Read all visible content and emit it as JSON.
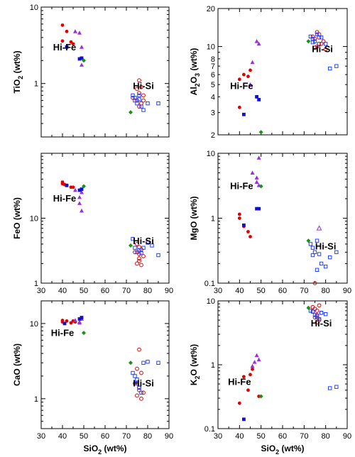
{
  "page": {
    "background": "#ffffff"
  },
  "legend_markers": {
    "red_filled_circle": "#e00000",
    "red_open_circle": "#e00000",
    "purple_triangle": "#9b30d9",
    "blue_filled_square": "#1010cc",
    "blue_open_square": "#2040ff",
    "green_diamond": "#1a8f1a"
  },
  "chart_data": [
    {
      "id": "tio2",
      "type": "scatter",
      "ylog": true,
      "xlim": [
        30,
        90
      ],
      "ylim": [
        0.2,
        10
      ],
      "xticks": [
        30,
        40,
        50,
        60,
        70,
        80,
        90
      ],
      "xlabels_shown": false,
      "yticks": [
        1,
        10
      ],
      "ylabels": [
        "1",
        "10"
      ],
      "ylabel": "TiO2 (wt%)",
      "ylabel_main": "TiO",
      "ylabel_sub": "2",
      "ylabel_rest": " (wt%)",
      "annotations": [
        {
          "text": "Hi-Fe",
          "x": 41,
          "y": 2.7
        },
        {
          "text": "Hi-Si",
          "x": 78,
          "y": 0.85
        }
      ],
      "series": [
        {
          "marker": "red_filled_circle",
          "x": [
            40,
            42,
            40,
            44,
            45
          ],
          "y": [
            5.8,
            4.8,
            3.6,
            3.5,
            3.3
          ]
        },
        {
          "marker": "purple_triangle",
          "x": [
            46,
            48,
            49,
            49
          ],
          "y": [
            4.8,
            4.6,
            3.0,
            1.75
          ]
        },
        {
          "marker": "blue_filled_square",
          "x": [
            42,
            48,
            49
          ],
          "y": [
            3.0,
            2.1,
            2.15
          ]
        },
        {
          "marker": "green_diamond",
          "x": [
            50,
            72
          ],
          "y": [
            2.0,
            0.42
          ]
        },
        {
          "marker": "red_open_circle",
          "x": [
            76,
            77,
            75,
            76,
            78,
            73,
            75,
            77,
            76,
            78
          ],
          "y": [
            1.1,
            0.9,
            0.85,
            0.75,
            0.7,
            0.65,
            0.6,
            0.55,
            0.5,
            0.6
          ]
        },
        {
          "marker": "blue_open_square",
          "x": [
            73,
            74,
            75,
            76,
            77,
            78,
            80,
            85,
            74,
            76
          ],
          "y": [
            0.7,
            0.6,
            0.55,
            0.7,
            0.5,
            0.45,
            0.55,
            0.55,
            0.65,
            0.62
          ]
        }
      ]
    },
    {
      "id": "al2o3",
      "type": "scatter",
      "ylog": true,
      "xlim": [
        30,
        90
      ],
      "ylim": [
        2,
        20
      ],
      "xticks": [
        30,
        40,
        50,
        60,
        70,
        80,
        90
      ],
      "xlabels_shown": false,
      "yticks": [
        2,
        3,
        4,
        5,
        6,
        7,
        8,
        10,
        20
      ],
      "ylabels": [
        "2",
        "3",
        "4",
        "5",
        "6",
        "7",
        "8",
        "10",
        "20"
      ],
      "ylabel": "Al2O3 (wt%)",
      "ylabel_main": "Al",
      "ylabel_sub": "2",
      "ylabel_mid": "O",
      "ylabel_sub2": "3",
      "ylabel_rest": " (wt%)",
      "annotations": [
        {
          "text": "Hi-Fe",
          "x": 41,
          "y": 4.6
        },
        {
          "text": "Hi-Si",
          "x": 78.5,
          "y": 9.0
        }
      ],
      "series": [
        {
          "marker": "red_filled_circle",
          "x": [
            40,
            42,
            44,
            45,
            40
          ],
          "y": [
            5.5,
            6.0,
            5.8,
            6.5,
            3.3
          ]
        },
        {
          "marker": "purple_triangle",
          "x": [
            46,
            48,
            49,
            45
          ],
          "y": [
            7.5,
            11.0,
            10.5,
            5.0
          ]
        },
        {
          "marker": "blue_filled_square",
          "x": [
            42,
            48,
            49
          ],
          "y": [
            2.9,
            4.0,
            3.8
          ]
        },
        {
          "marker": "green_diamond",
          "x": [
            50,
            72
          ],
          "y": [
            2.1,
            11.0
          ]
        },
        {
          "marker": "red_open_circle",
          "x": [
            74,
            75,
            76,
            77,
            78,
            76,
            75,
            79,
            77,
            80
          ],
          "y": [
            12.0,
            11.5,
            13.0,
            12.5,
            10.5,
            10.0,
            9.8,
            11.0,
            11.8,
            9.5
          ]
        },
        {
          "marker": "blue_open_square",
          "x": [
            73,
            74,
            75,
            76,
            77,
            78,
            80,
            82,
            85,
            74
          ],
          "y": [
            12.0,
            11.5,
            11.0,
            12.5,
            10.5,
            11.8,
            10.5,
            6.7,
            7.0,
            10.8
          ]
        }
      ]
    },
    {
      "id": "feo",
      "type": "scatter",
      "ylog": true,
      "xlim": [
        30,
        90
      ],
      "ylim": [
        1,
        100
      ],
      "xticks": [
        30,
        40,
        50,
        60,
        70,
        80,
        90
      ],
      "xlabels": [
        "30",
        "40",
        "50",
        "60",
        "70",
        "80",
        "90"
      ],
      "xlabels_shown": true,
      "yticks": [
        1,
        10
      ],
      "ylabels": [
        "1",
        "10"
      ],
      "ylabel": "FeO (wt%)",
      "annotations": [
        {
          "text": "Hi-Fe",
          "x": 41,
          "y": 18
        },
        {
          "text": "Hi-Si",
          "x": 78,
          "y": 4.0
        }
      ],
      "series": [
        {
          "marker": "red_filled_circle",
          "x": [
            40,
            40,
            42,
            44,
            45,
            41
          ],
          "y": [
            36,
            34,
            32,
            30,
            30,
            33
          ]
        },
        {
          "marker": "purple_triangle",
          "x": [
            46,
            48,
            48,
            49,
            49
          ],
          "y": [
            27,
            21,
            17,
            13,
            25
          ]
        },
        {
          "marker": "blue_filled_square",
          "x": [
            42,
            48,
            49
          ],
          "y": [
            32,
            27,
            28
          ]
        },
        {
          "marker": "green_diamond",
          "x": [
            50,
            72
          ],
          "y": [
            31,
            3.8
          ]
        },
        {
          "marker": "red_open_circle",
          "x": [
            75,
            76,
            77,
            74,
            76,
            78,
            76,
            75,
            77,
            76
          ],
          "y": [
            4.0,
            3.6,
            3.3,
            3.0,
            2.8,
            2.6,
            2.2,
            2.0,
            1.9,
            2.4
          ]
        },
        {
          "marker": "blue_open_square",
          "x": [
            73,
            74,
            76,
            78,
            80,
            82,
            85,
            75,
            77
          ],
          "y": [
            4.8,
            3.5,
            3.2,
            3.5,
            4.2,
            3.8,
            2.7,
            3.0,
            2.9
          ]
        }
      ]
    },
    {
      "id": "mgo",
      "type": "scatter",
      "ylog": true,
      "xlim": [
        30,
        90
      ],
      "ylim": [
        0.1,
        10
      ],
      "xticks": [
        30,
        40,
        50,
        60,
        70,
        80,
        90
      ],
      "xlabels": [
        "30",
        "40",
        "50",
        "60",
        "70",
        "80",
        "90"
      ],
      "xlabels_shown": true,
      "yticks": [
        0.1,
        1,
        10
      ],
      "ylabels": [
        "0.1",
        "1",
        "10"
      ],
      "ylabel": "MgO (wt%)",
      "annotations": [
        {
          "text": "Hi-Fe",
          "x": 41,
          "y": 2.8
        },
        {
          "text": "Hi-Si",
          "x": 80,
          "y": 0.33
        }
      ],
      "series": [
        {
          "marker": "red_filled_circle",
          "x": [
            40,
            40,
            42,
            44,
            45
          ],
          "y": [
            1.15,
            1.0,
            0.75,
            0.62,
            0.52
          ]
        },
        {
          "marker": "purple_triangle",
          "x": [
            46,
            48,
            48,
            49,
            49
          ],
          "y": [
            5.0,
            4.2,
            3.6,
            8.5,
            3.2
          ]
        },
        {
          "marker": "blue_filled_square",
          "x": [
            42,
            48,
            49
          ],
          "y": [
            0.78,
            1.4,
            1.4
          ]
        },
        {
          "marker": "green_diamond",
          "x": [
            50,
            72
          ],
          "y": [
            3.1,
            0.45
          ]
        },
        {
          "marker": "red_open_circle",
          "x": [
            75
          ],
          "y": [
            0.1
          ]
        },
        {
          "marker": "purple_open_triangle",
          "x": [
            77
          ],
          "y": [
            0.7
          ]
        },
        {
          "marker": "blue_open_square",
          "x": [
            73,
            74,
            75,
            76,
            77,
            78,
            80,
            82,
            85,
            74,
            76
          ],
          "y": [
            0.4,
            0.35,
            0.3,
            0.45,
            0.28,
            0.2,
            0.18,
            0.25,
            0.3,
            0.27,
            0.16
          ]
        }
      ]
    },
    {
      "id": "cao",
      "type": "scatter",
      "ylog": true,
      "xlim": [
        30,
        90
      ],
      "ylim": [
        0.4,
        20
      ],
      "xticks": [
        30,
        40,
        50,
        60,
        70,
        80,
        90
      ],
      "xlabels": [
        "30",
        "40",
        "50",
        "60",
        "70",
        "80",
        "90"
      ],
      "xlabels_shown": true,
      "yticks": [
        1,
        10
      ],
      "ylabels": [
        "1",
        "10"
      ],
      "ylabel": "CaO (wt%)",
      "xlabel": "SiO2 (wt%)",
      "xlabel_main": "SiO",
      "xlabel_sub": "2",
      "xlabel_rest": " (wt%)",
      "annotations": [
        {
          "text": "Hi-Fe",
          "x": 40,
          "y": 6.8
        },
        {
          "text": "Hi-Si",
          "x": 78,
          "y": 1.45
        }
      ],
      "series": [
        {
          "marker": "red_filled_circle",
          "x": [
            40,
            40,
            42,
            44,
            45,
            46
          ],
          "y": [
            11.0,
            10.5,
            10.8,
            10.2,
            10.8,
            10.5
          ]
        },
        {
          "marker": "purple_triangle",
          "x": [
            46,
            48,
            48,
            49
          ],
          "y": [
            11.0,
            10.5,
            10.2,
            11.5
          ]
        },
        {
          "marker": "blue_filled_square",
          "x": [
            41,
            48,
            49
          ],
          "y": [
            10.0,
            11.5,
            12.0
          ]
        },
        {
          "marker": "green_diamond",
          "x": [
            50,
            72
          ],
          "y": [
            7.5,
            3.0
          ]
        },
        {
          "marker": "red_open_circle",
          "x": [
            76,
            75,
            77,
            74,
            76,
            78,
            75,
            77,
            76
          ],
          "y": [
            4.5,
            2.5,
            2.2,
            1.6,
            1.4,
            1.2,
            1.1,
            1.0,
            1.3
          ]
        },
        {
          "marker": "blue_open_square",
          "x": [
            73,
            74,
            75,
            76,
            77,
            78,
            80,
            85,
            75
          ],
          "y": [
            2.2,
            2.0,
            1.8,
            1.4,
            1.2,
            3.0,
            3.1,
            3.0,
            1.6
          ]
        }
      ]
    },
    {
      "id": "k2o",
      "type": "scatter",
      "ylog": true,
      "xlim": [
        30,
        90
      ],
      "ylim": [
        0.1,
        10
      ],
      "xticks": [
        30,
        40,
        50,
        60,
        70,
        80,
        90
      ],
      "xlabels": [
        "30",
        "40",
        "50",
        "60",
        "70",
        "80",
        "90"
      ],
      "xlabels_shown": true,
      "yticks": [
        0.1,
        1,
        10
      ],
      "ylabels": [
        "0.1",
        "1",
        "10"
      ],
      "ylabel": "K2O (wt%)",
      "ylabel_main": "K",
      "ylabel_sub": "2",
      "ylabel_rest": "O (wt%)",
      "xlabel": "SiO2 (wt%)",
      "xlabel_main": "SiO",
      "xlabel_sub": "2",
      "xlabel_rest": " (wt%)",
      "annotations": [
        {
          "text": "Hi-Fe",
          "x": 40,
          "y": 0.48
        },
        {
          "text": "Hi-Si",
          "x": 78,
          "y": 4.0
        }
      ],
      "series": [
        {
          "marker": "red_filled_circle",
          "x": [
            42,
            44,
            45,
            46,
            40,
            49
          ],
          "y": [
            0.65,
            0.4,
            0.7,
            0.85,
            0.25,
            0.32
          ]
        },
        {
          "marker": "purple_triangle",
          "x": [
            46,
            47,
            48,
            49
          ],
          "y": [
            0.95,
            1.1,
            1.4,
            1.2
          ]
        },
        {
          "marker": "blue_filled_square",
          "x": [
            42
          ],
          "y": [
            0.14
          ]
        },
        {
          "marker": "green_diamond",
          "x": [
            50,
            72
          ],
          "y": [
            0.32,
            7.8
          ]
        },
        {
          "marker": "red_open_circle",
          "x": [
            74,
            75,
            76,
            77,
            78,
            76,
            75,
            77,
            76,
            74
          ],
          "y": [
            8.0,
            7.5,
            7.0,
            8.5,
            6.5,
            6.0,
            5.5,
            5.0,
            4.6,
            6.8
          ]
        },
        {
          "marker": "blue_open_square",
          "x": [
            73,
            74,
            75,
            76,
            77,
            78,
            80,
            82,
            85,
            76
          ],
          "y": [
            7.0,
            6.8,
            6.0,
            5.5,
            5.2,
            6.5,
            6.2,
            0.43,
            0.45,
            5.8
          ]
        }
      ]
    }
  ]
}
